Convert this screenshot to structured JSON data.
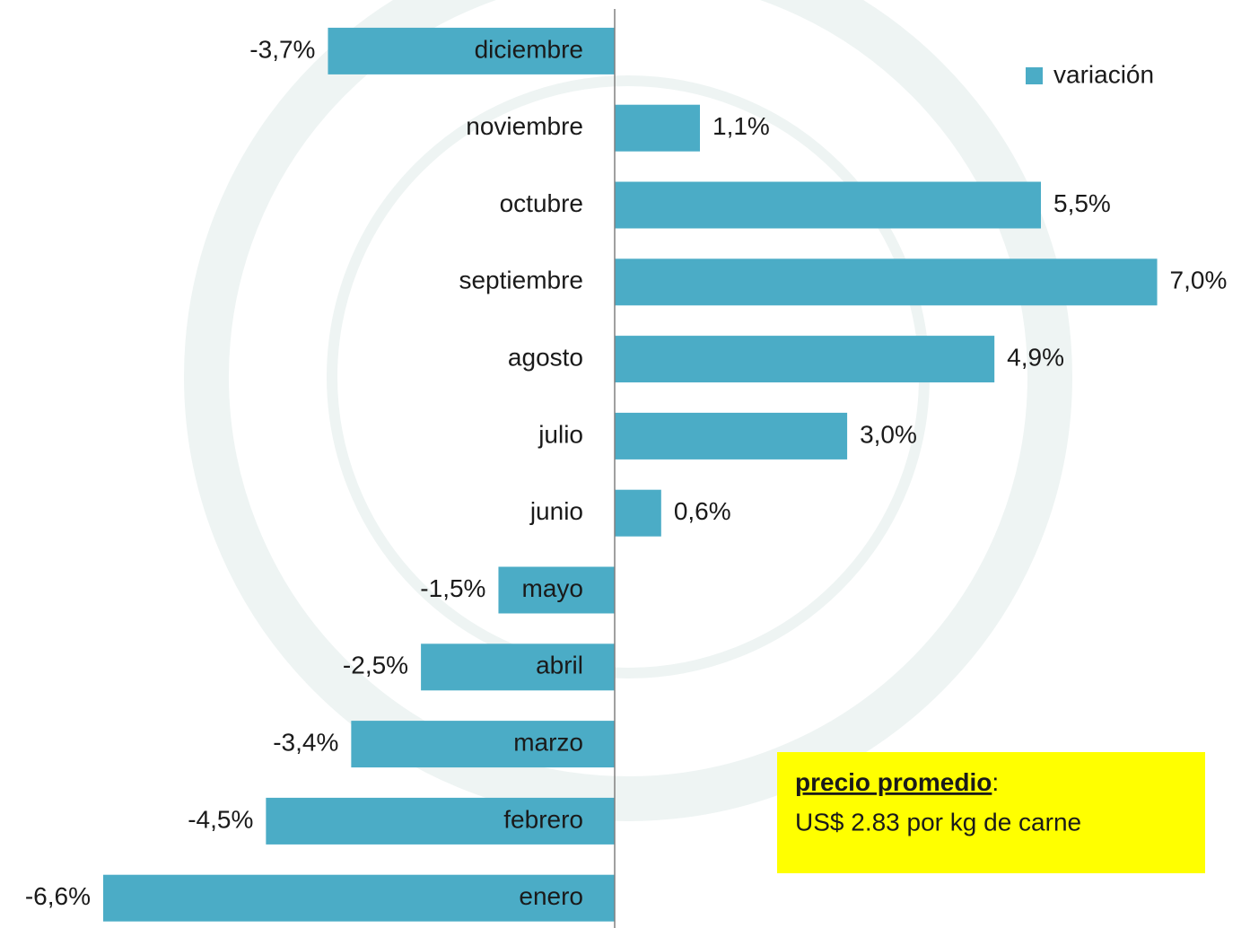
{
  "chart_data": {
    "type": "bar",
    "orientation": "horizontal",
    "categories": [
      "diciembre",
      "noviembre",
      "octubre",
      "septiembre",
      "agosto",
      "julio",
      "junio",
      "mayo",
      "abril",
      "marzo",
      "febrero",
      "enero"
    ],
    "series": [
      {
        "name": "variación",
        "color": "#4bacc6",
        "values": [
          -3.7,
          1.1,
          5.5,
          7.0,
          4.9,
          3.0,
          0.6,
          -1.5,
          -2.5,
          -3.4,
          -4.5,
          -6.6
        ],
        "value_labels": [
          "-3,7%",
          "1,1%",
          "5,5%",
          "7,0%",
          "4,9%",
          "3,0%",
          "0,6%",
          "-1,5%",
          "-2,5%",
          "-3,4%",
          "-4,5%",
          "-6,6%"
        ]
      }
    ],
    "legend": "top-right",
    "annotation": {
      "heading": "precio promedio",
      "separator": ":",
      "text": "US$ 2.83 por kg de carne",
      "background": "#ffff00"
    }
  }
}
